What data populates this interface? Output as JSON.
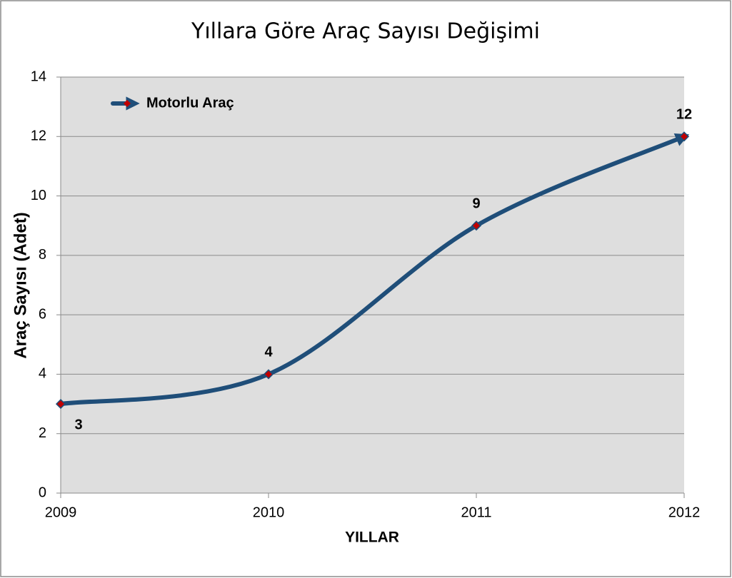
{
  "chart_data": {
    "type": "line",
    "title": "Yıllara Göre Araç Sayısı Değişimi",
    "x_label": "YILLAR",
    "y_label": "Araç Sayısı (Adet)",
    "x": [
      2009,
      2010,
      2011,
      2012
    ],
    "series": [
      {
        "name": "Motorlu Araç",
        "color": "#1f4e79",
        "marker_color": "#c00000",
        "values": [
          3,
          4,
          9,
          12
        ]
      }
    ],
    "xlim": [
      2009,
      2012
    ],
    "xticks": [
      2009,
      2010,
      2011,
      2012
    ],
    "ylim": [
      0,
      14
    ],
    "yticks": [
      0,
      2,
      4,
      6,
      8,
      10,
      12,
      14
    ],
    "grid": true,
    "legend": "top-left"
  }
}
